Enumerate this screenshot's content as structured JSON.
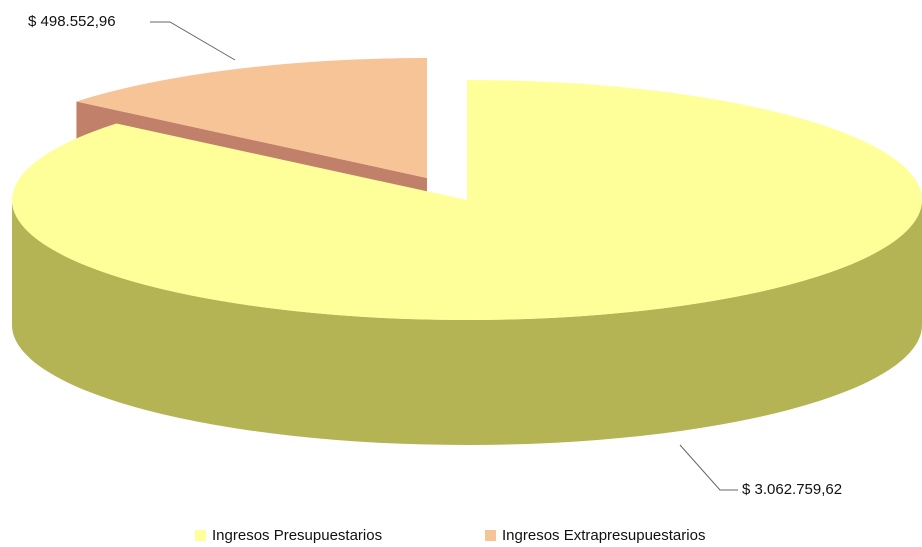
{
  "chart_data": {
    "type": "pie",
    "categories": [
      "Ingresos Presupuestarios",
      "Ingresos Extrapresupuestarios"
    ],
    "values": [
      3062759.62,
      498552.96
    ],
    "value_labels": [
      "$ 3.062.759,62",
      "$ 498.552,96"
    ],
    "colors": [
      "#ffff99",
      "#f7c497"
    ],
    "side_colors": [
      "#b4b455",
      "#c0806a"
    ],
    "legend": "bottom"
  }
}
